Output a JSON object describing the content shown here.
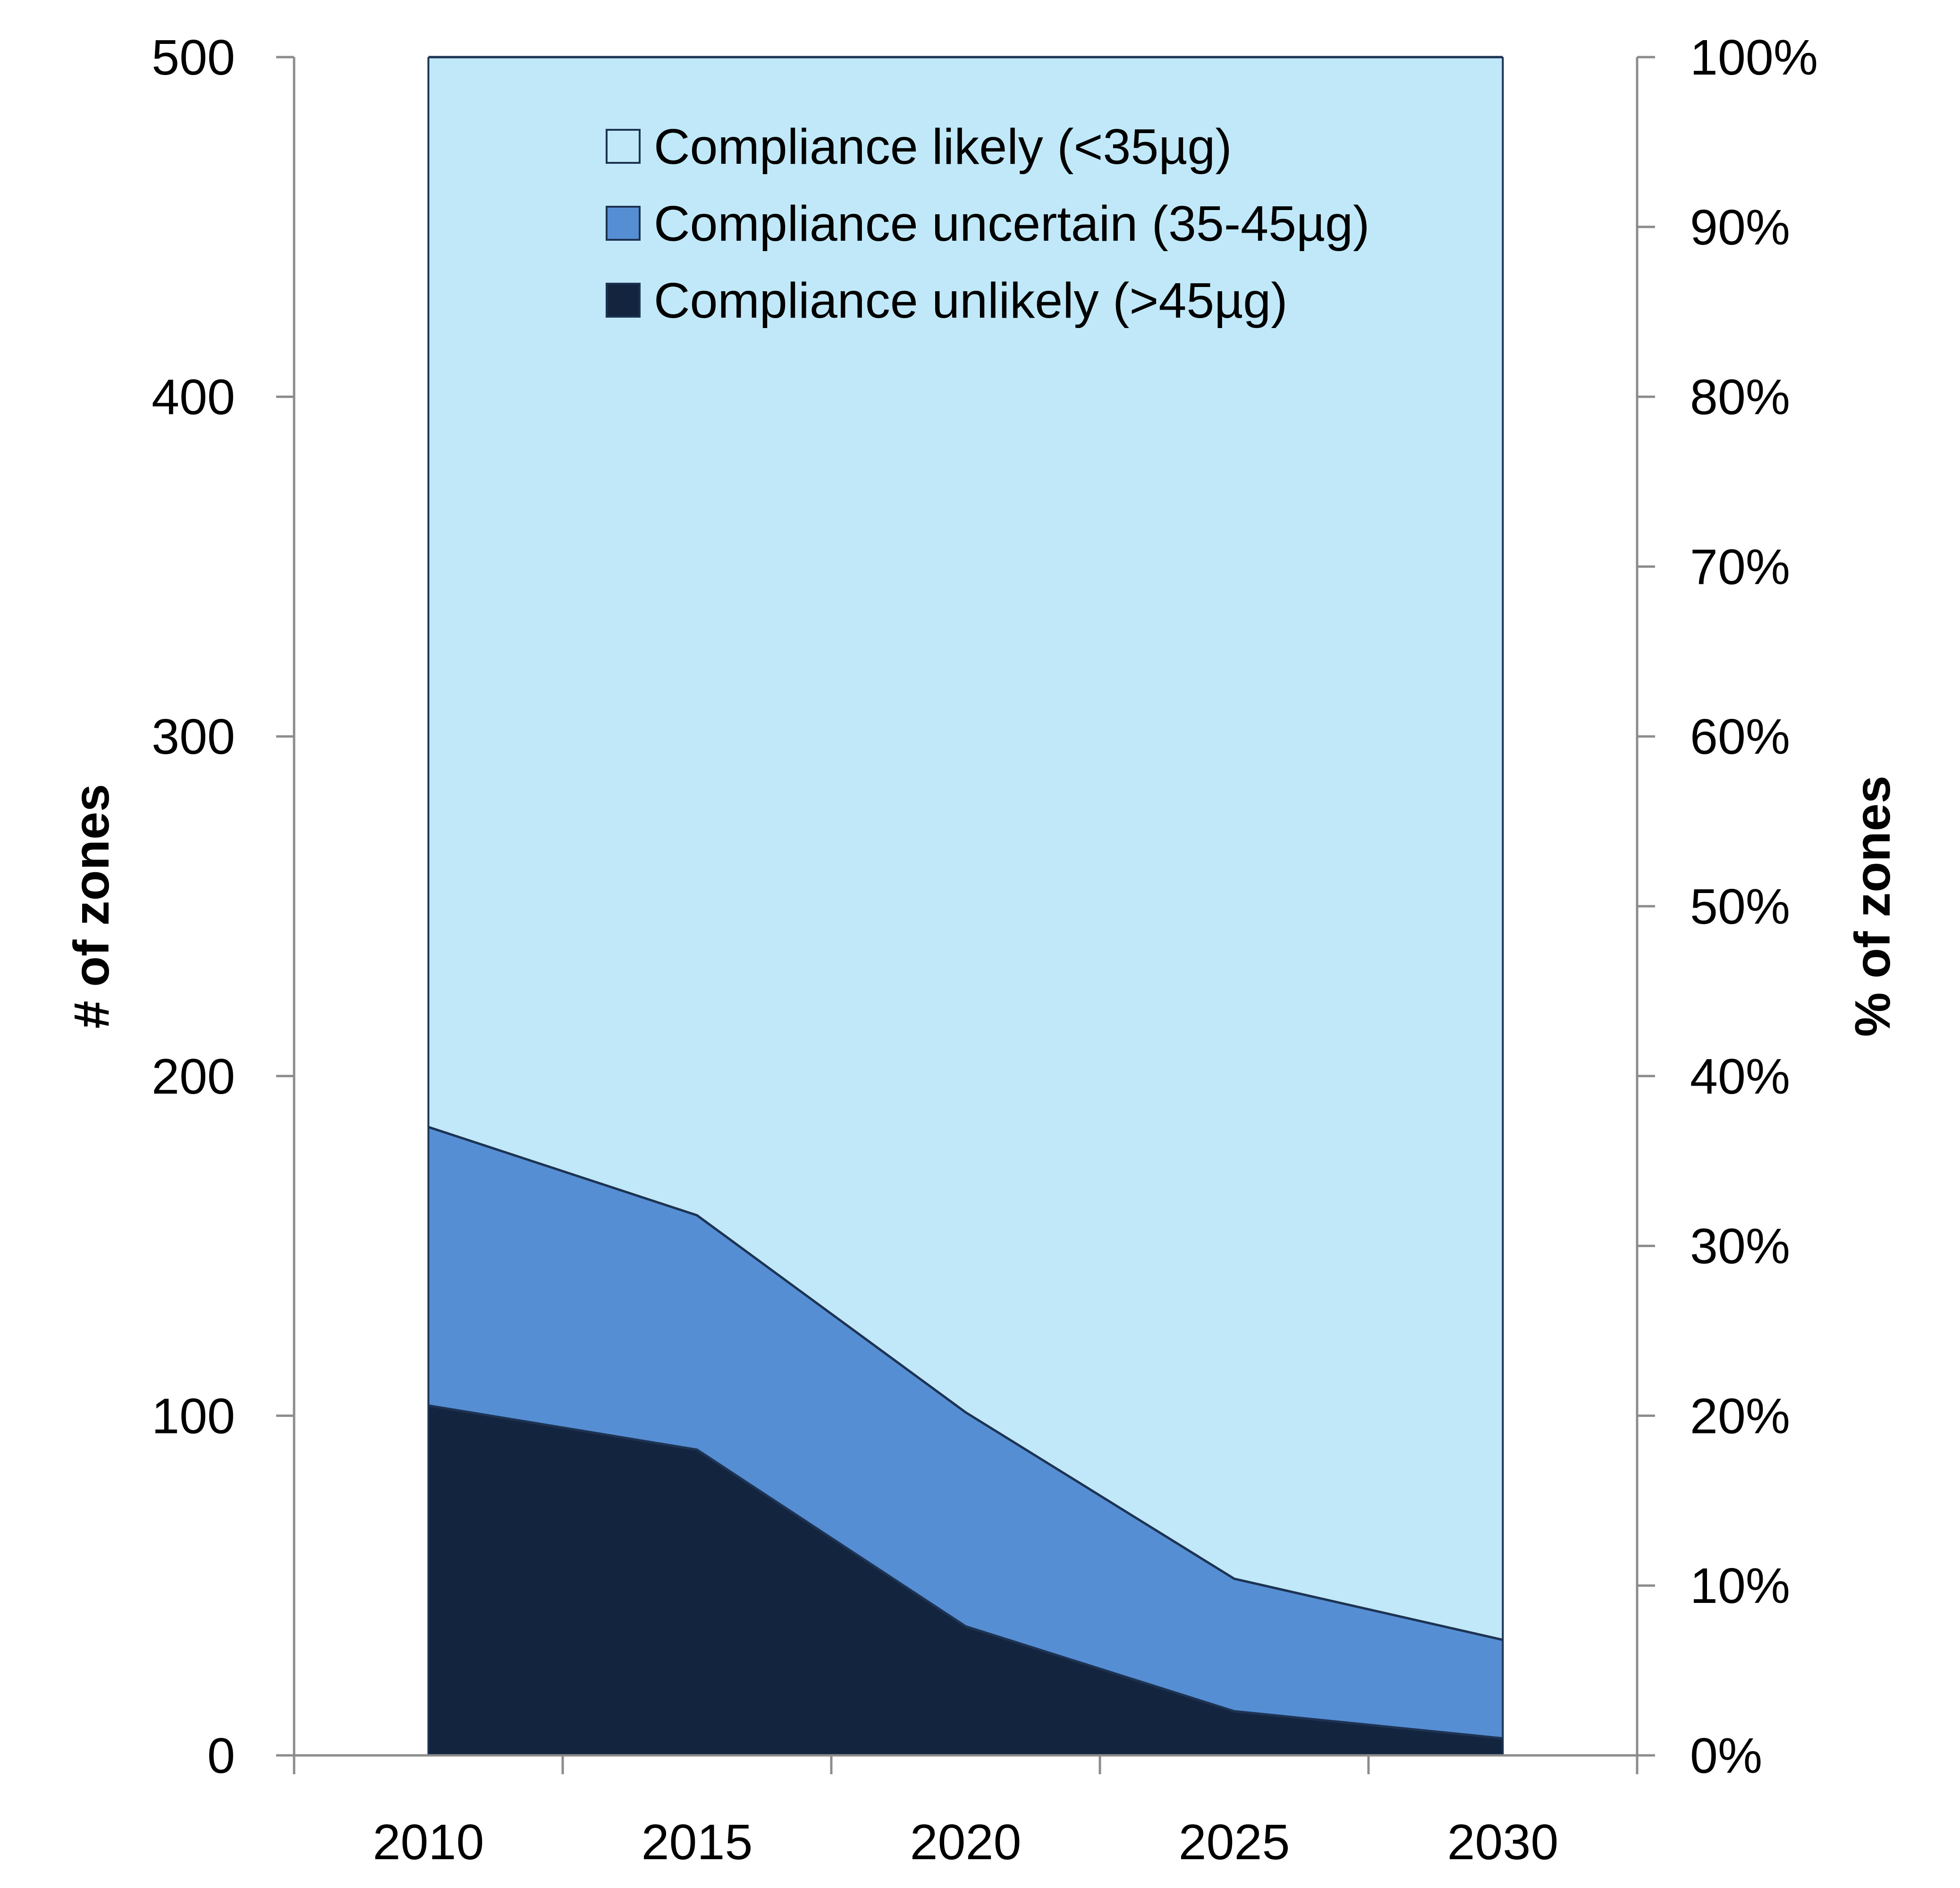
{
  "chart_data": {
    "type": "area",
    "stacked": true,
    "x": [
      2010,
      2015,
      2020,
      2025,
      2030
    ],
    "x_tick_labels": [
      "2010",
      "2015",
      "2020",
      "2025",
      "2030"
    ],
    "xlim": [
      2007.5,
      2032.5
    ],
    "series": [
      {
        "name": "Compliance unlikely (>45µg)",
        "values": [
          103,
          90,
          38,
          13,
          5
        ],
        "color": "#13243f"
      },
      {
        "name": "Compliance uncertain (35-45µg)",
        "values": [
          82,
          69,
          63,
          39,
          29
        ],
        "color": "#568ed4"
      },
      {
        "name": "Compliance likely (<35µg)",
        "values": [
          315,
          341,
          399,
          448,
          466
        ],
        "color": "#c0e8f8"
      }
    ],
    "y_left": {
      "label": "# of zones",
      "lim": [
        0,
        500
      ],
      "ticks": [
        0,
        100,
        200,
        300,
        400,
        500
      ],
      "tick_labels": [
        "0",
        "100",
        "200",
        "300",
        "400",
        "500"
      ]
    },
    "y_right": {
      "label": "% of zones",
      "lim": [
        0,
        100
      ],
      "ticks": [
        0,
        10,
        20,
        30,
        40,
        50,
        60,
        70,
        80,
        90,
        100
      ],
      "tick_labels": [
        "0%",
        "10%",
        "20%",
        "30%",
        "40%",
        "50%",
        "60%",
        "70%",
        "80%",
        "90%",
        "100%"
      ]
    },
    "legend": {
      "placement": "top-center",
      "order": [
        2,
        1,
        0
      ]
    },
    "grid": false,
    "axis_color": "#8c8c8c",
    "outline_color": "#1d3352"
  }
}
